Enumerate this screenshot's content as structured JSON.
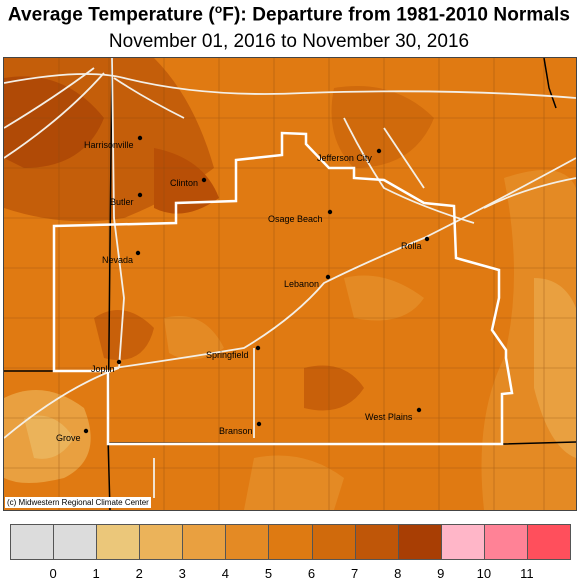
{
  "title": {
    "prefix": "Average Temperature (",
    "sup": "o",
    "suffix": "F): Departure from 1981-2010 Normals"
  },
  "subtitle": "November 01, 2016 to November 30, 2016",
  "credit": "(c) Midwestern Regional Climate Center",
  "cities": [
    {
      "name": "Harrisonville"
    },
    {
      "name": "Jefferson City"
    },
    {
      "name": "Clinton"
    },
    {
      "name": "Butler"
    },
    {
      "name": "Osage Beach"
    },
    {
      "name": "Rolla"
    },
    {
      "name": "Nevada"
    },
    {
      "name": "Lebanon"
    },
    {
      "name": "Springfield"
    },
    {
      "name": "Joplin"
    },
    {
      "name": "West Plains"
    },
    {
      "name": "Branson"
    },
    {
      "name": "Grove"
    }
  ],
  "legend": {
    "colors": [
      "#dcdcdc",
      "#dcdcdc",
      "#ebc77a",
      "#ebb35a",
      "#e9a040",
      "#e48a24",
      "#de7a12",
      "#d06a0c",
      "#bf5608",
      "#a83e04",
      "#ffb6c8",
      "#ff8296",
      "#ff4f5c"
    ],
    "ticks": [
      "0",
      "1",
      "2",
      "3",
      "4",
      "5",
      "6",
      "7",
      "8",
      "9",
      "10",
      "11"
    ]
  }
}
